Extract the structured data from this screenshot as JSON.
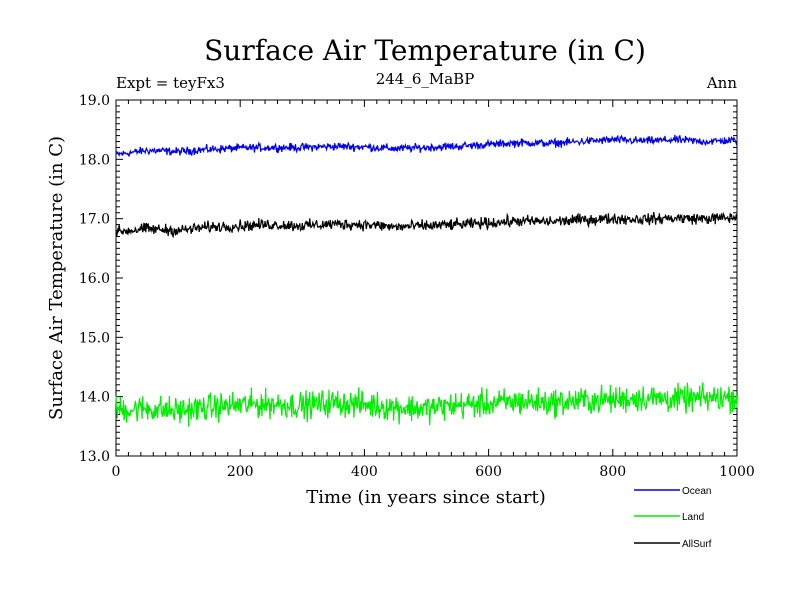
{
  "chart_data": {
    "type": "line",
    "title": "Surface Air Temperature (in C)",
    "subtitle_left": "Expt = teyFx3",
    "subtitle_center": "244_6_MaBP",
    "subtitle_right": "Ann",
    "xlabel": "Time (in years since start)",
    "ylabel": "Surface Air Temperature (in C)",
    "xlim": [
      0,
      1000
    ],
    "ylim": [
      13.0,
      19.0
    ],
    "xticks": [
      0,
      200,
      400,
      600,
      800,
      1000
    ],
    "xtick_labels": [
      "0",
      "200",
      "400",
      "600",
      "800",
      "1000"
    ],
    "yticks": [
      13.0,
      14.0,
      15.0,
      16.0,
      17.0,
      18.0,
      19.0
    ],
    "ytick_labels": [
      "13.0",
      "14.0",
      "15.0",
      "16.0",
      "17.0",
      "18.0",
      "19.0"
    ],
    "x": [
      0,
      50,
      100,
      150,
      200,
      250,
      300,
      350,
      400,
      450,
      500,
      550,
      600,
      650,
      700,
      750,
      800,
      850,
      900,
      950,
      1000
    ],
    "series": [
      {
        "name": "Ocean",
        "color": "#0000ee",
        "values": [
          18.08,
          18.15,
          18.13,
          18.17,
          18.19,
          18.2,
          18.2,
          18.22,
          18.21,
          18.18,
          18.2,
          18.22,
          18.25,
          18.28,
          18.27,
          18.3,
          18.33,
          18.31,
          18.33,
          18.3,
          18.32
        ],
        "noise": 0.05
      },
      {
        "name": "Land",
        "color": "#00ee00",
        "values": [
          13.78,
          13.8,
          13.76,
          13.82,
          13.86,
          13.88,
          13.85,
          13.9,
          13.87,
          13.82,
          13.8,
          13.86,
          13.88,
          13.92,
          13.9,
          13.93,
          13.95,
          13.98,
          13.96,
          13.97,
          13.99
        ],
        "noise": 0.17
      },
      {
        "name": "AllSurf",
        "color": "#000000",
        "values": [
          16.78,
          16.83,
          16.8,
          16.86,
          16.88,
          16.9,
          16.88,
          16.91,
          16.9,
          16.86,
          16.88,
          16.9,
          16.93,
          16.96,
          16.95,
          16.98,
          17.0,
          16.99,
          17.01,
          17.0,
          17.02
        ],
        "noise": 0.07
      }
    ],
    "legend_position": "bottom-right"
  }
}
